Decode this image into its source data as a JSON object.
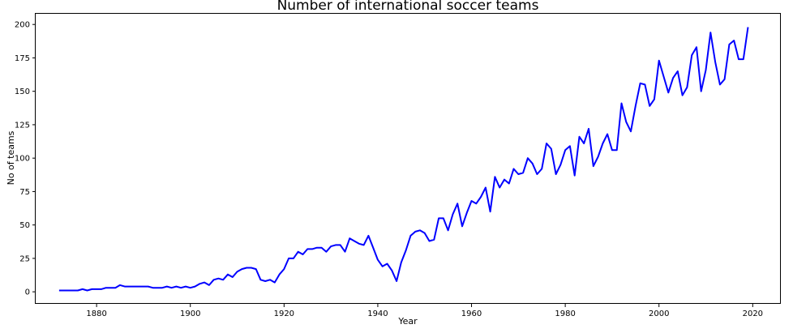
{
  "chart_data": {
    "type": "line",
    "title": "Number of international soccer teams",
    "xlabel": "Year",
    "ylabel": "No of teams",
    "xlim": [
      1867,
      2026
    ],
    "ylim": [
      -9,
      208
    ],
    "xticks": [
      1880,
      1900,
      1920,
      1940,
      1960,
      1980,
      2000,
      2020
    ],
    "yticks": [
      0,
      25,
      50,
      75,
      100,
      125,
      150,
      175,
      200
    ],
    "grid": false,
    "legend": "none",
    "line_color": "#0000ff",
    "series": [
      {
        "x": [
          1872,
          1873,
          1874,
          1875,
          1876,
          1877,
          1878,
          1879,
          1880,
          1881,
          1882,
          1883,
          1884,
          1885,
          1886,
          1887,
          1888,
          1889,
          1890,
          1891,
          1892,
          1893,
          1894,
          1895,
          1896,
          1897,
          1898,
          1899,
          1900,
          1901,
          1902,
          1903,
          1904,
          1905,
          1906,
          1907,
          1908,
          1909,
          1910,
          1911,
          1912,
          1913,
          1914,
          1915,
          1916,
          1917,
          1918,
          1919,
          1920,
          1921,
          1922,
          1923,
          1924,
          1925,
          1926,
          1927,
          1928,
          1929,
          1930,
          1931,
          1932,
          1933,
          1934,
          1935,
          1936,
          1937,
          1938,
          1939,
          1940,
          1941,
          1942,
          1943,
          1944,
          1945,
          1946,
          1947,
          1948,
          1949,
          1950,
          1951,
          1952,
          1953,
          1954,
          1955,
          1956,
          1957,
          1958,
          1959,
          1960,
          1961,
          1962,
          1963,
          1964,
          1965,
          1966,
          1967,
          1968,
          1969,
          1970,
          1971,
          1972,
          1973,
          1974,
          1975,
          1976,
          1977,
          1978,
          1979,
          1980,
          1981,
          1982,
          1983,
          1984,
          1985,
          1986,
          1987,
          1988,
          1989,
          1990,
          1991,
          1992,
          1993,
          1994,
          1995,
          1996,
          1997,
          1998,
          1999,
          2000,
          2001,
          2002,
          2003,
          2004,
          2005,
          2006,
          2007,
          2008,
          2009,
          2010,
          2011,
          2012,
          2013,
          2014,
          2015,
          2016,
          2017,
          2018,
          2019
        ],
        "y": [
          1,
          1,
          1,
          1,
          1,
          2,
          1,
          2,
          2,
          2,
          3,
          3,
          3,
          5,
          4,
          4,
          4,
          4,
          4,
          4,
          3,
          3,
          3,
          4,
          3,
          4,
          3,
          4,
          3,
          4,
          6,
          7,
          5,
          9,
          10,
          9,
          13,
          11,
          15,
          17,
          18,
          18,
          17,
          9,
          8,
          9,
          7,
          13,
          17,
          25,
          25,
          30,
          28,
          32,
          32,
          33,
          33,
          30,
          34,
          35,
          35,
          30,
          40,
          38,
          36,
          35,
          42,
          33,
          24,
          19,
          21,
          16,
          8,
          22,
          31,
          42,
          45,
          46,
          44,
          38,
          39,
          55,
          55,
          46,
          58,
          66,
          49,
          59,
          68,
          66,
          71,
          78,
          60,
          86,
          78,
          84,
          81,
          92,
          88,
          89,
          100,
          96,
          88,
          92,
          111,
          107,
          88,
          95,
          106,
          109,
          87,
          116,
          111,
          122,
          94,
          101,
          111,
          118,
          106,
          106,
          141,
          127,
          120,
          139,
          156,
          155,
          139,
          144,
          173,
          161,
          149,
          160,
          165,
          147,
          153,
          177,
          183,
          150,
          166,
          194,
          172,
          155,
          159,
          185,
          188,
          174,
          174,
          198
        ]
      }
    ]
  }
}
